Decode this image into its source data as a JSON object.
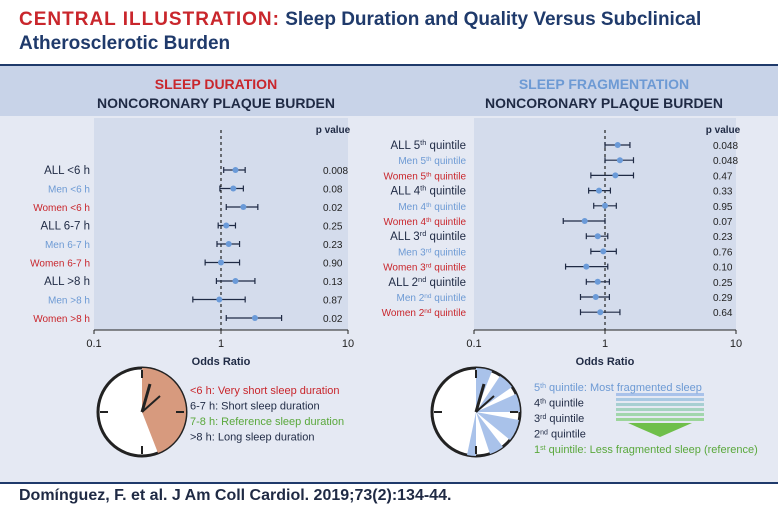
{
  "header": {
    "lead": "CENTRAL ILLUSTRATION:",
    "title_rest": " Sleep Duration and Quality Versus Subclinical",
    "title_line2": "Atherosclerotic Burden"
  },
  "colors": {
    "red": "#c9262c",
    "blue": "#6d9ad4",
    "dark": "#1f2a44",
    "green": "#5aa83c",
    "navy": "#1f3a6b",
    "dot": "#6a9ad8"
  },
  "chart_data": [
    {
      "type": "forest",
      "heading": "SLEEP DURATION",
      "subheading": "NONCORONARY PLAQUE BURDEN",
      "xlabel": "Odds Ratio",
      "xscale": "log",
      "xlim": [
        0.1,
        10
      ],
      "xticks": [
        "0.1",
        "1",
        "10"
      ],
      "pvalue_header": "p value",
      "rows": [
        {
          "label": "ALL <6 h",
          "group": "all",
          "or": 1.3,
          "lo": 1.05,
          "hi": 1.55,
          "p": "0.008"
        },
        {
          "label": "Men <6 h",
          "group": "men",
          "or": 1.25,
          "lo": 0.98,
          "hi": 1.5,
          "p": "0.08"
        },
        {
          "label": "Women <6 h",
          "group": "women",
          "or": 1.5,
          "lo": 1.1,
          "hi": 1.95,
          "p": "0.02"
        },
        {
          "label": "ALL 6-7 h",
          "group": "all",
          "or": 1.1,
          "lo": 0.95,
          "hi": 1.3,
          "p": "0.25"
        },
        {
          "label": "Men 6-7 h",
          "group": "men",
          "or": 1.15,
          "lo": 0.93,
          "hi": 1.4,
          "p": "0.23"
        },
        {
          "label": "Women 6-7 h",
          "group": "women",
          "or": 1.0,
          "lo": 0.75,
          "hi": 1.4,
          "p": "0.90"
        },
        {
          "label": "ALL >8 h",
          "group": "all",
          "or": 1.3,
          "lo": 0.92,
          "hi": 1.85,
          "p": "0.13"
        },
        {
          "label": "Men >8 h",
          "group": "men",
          "or": 0.97,
          "lo": 0.6,
          "hi": 1.55,
          "p": "0.87"
        },
        {
          "label": "Women >8 h",
          "group": "women",
          "or": 1.85,
          "lo": 1.1,
          "hi": 3.0,
          "p": "0.02"
        }
      ]
    },
    {
      "type": "forest",
      "heading": "SLEEP FRAGMENTATION",
      "subheading": "NONCORONARY PLAQUE BURDEN",
      "xlabel": "Odds Ratio",
      "xscale": "log",
      "xlim": [
        0.1,
        10
      ],
      "xticks": [
        "0.1",
        "1",
        "10"
      ],
      "pvalue_header": "p value",
      "rows": [
        {
          "label": "ALL 5",
          "sup": "th",
          "suffix": " quintile",
          "group": "all",
          "or": 1.25,
          "lo": 1.0,
          "hi": 1.55,
          "p": "0.048"
        },
        {
          "label": "Men 5",
          "sup": "th",
          "suffix": " quintile",
          "group": "men",
          "or": 1.3,
          "lo": 1.0,
          "hi": 1.65,
          "p": "0.048"
        },
        {
          "label": "Women 5",
          "sup": "th",
          "suffix": " quintile",
          "group": "women",
          "or": 1.2,
          "lo": 0.78,
          "hi": 1.65,
          "p": "0.47"
        },
        {
          "label": "ALL 4",
          "sup": "th",
          "suffix": " quintile",
          "group": "all",
          "or": 0.9,
          "lo": 0.75,
          "hi": 1.1,
          "p": "0.33"
        },
        {
          "label": "Men 4",
          "sup": "th",
          "suffix": " quintile",
          "group": "men",
          "or": 1.0,
          "lo": 0.82,
          "hi": 1.22,
          "p": "0.95"
        },
        {
          "label": "Women 4",
          "sup": "th",
          "suffix": " quintile",
          "group": "women",
          "or": 0.7,
          "lo": 0.48,
          "hi": 1.0,
          "p": "0.07"
        },
        {
          "label": "ALL 3",
          "sup": "rd",
          "suffix": " quintile",
          "group": "all",
          "or": 0.88,
          "lo": 0.72,
          "hi": 1.05,
          "p": "0.23"
        },
        {
          "label": "Men 3",
          "sup": "rd",
          "suffix": " quintile",
          "group": "men",
          "or": 0.97,
          "lo": 0.78,
          "hi": 1.22,
          "p": "0.76"
        },
        {
          "label": "Women 3",
          "sup": "rd",
          "suffix": " quintile",
          "group": "women",
          "or": 0.72,
          "lo": 0.5,
          "hi": 1.05,
          "p": "0.10"
        },
        {
          "label": "ALL 2",
          "sup": "nd",
          "suffix": " quintile",
          "group": "all",
          "or": 0.88,
          "lo": 0.72,
          "hi": 1.08,
          "p": "0.25"
        },
        {
          "label": "Men 2",
          "sup": "nd",
          "suffix": " quintile",
          "group": "men",
          "or": 0.85,
          "lo": 0.65,
          "hi": 1.08,
          "p": "0.29"
        },
        {
          "label": "Women 2",
          "sup": "nd",
          "suffix": " quintile",
          "group": "women",
          "or": 0.92,
          "lo": 0.65,
          "hi": 1.3,
          "p": "0.64"
        }
      ]
    }
  ],
  "legend_duration": [
    {
      "text": "<6 h: Very short sleep duration",
      "color": "#c9262c"
    },
    {
      "text": "6-7 h: Short sleep duration",
      "color": "#1f2a44"
    },
    {
      "text": "7-8 h: Reference sleep duration",
      "color": "#5aa83c"
    },
    {
      "text": ">8 h: Long sleep duration",
      "color": "#1f2a44"
    }
  ],
  "legend_fragmentation": [
    {
      "num": "5",
      "sup": "th",
      "text": " quintile: Most fragmented sleep",
      "color": "#6d9ad4"
    },
    {
      "num": "4",
      "sup": "th",
      "text": " quintile",
      "color": "#1f2a44"
    },
    {
      "num": "3",
      "sup": "rd",
      "text": " quintile",
      "color": "#1f2a44"
    },
    {
      "num": "2",
      "sup": "nd",
      "text": " quintile",
      "color": "#1f2a44"
    },
    {
      "num": "1",
      "sup": "st",
      "text": " quintile: Less fragmented sleep (reference)",
      "color": "#5aa83c"
    }
  ],
  "citation": "Domínguez, F. et al. J Am Coll Cardiol. 2019;73(2):134-44."
}
